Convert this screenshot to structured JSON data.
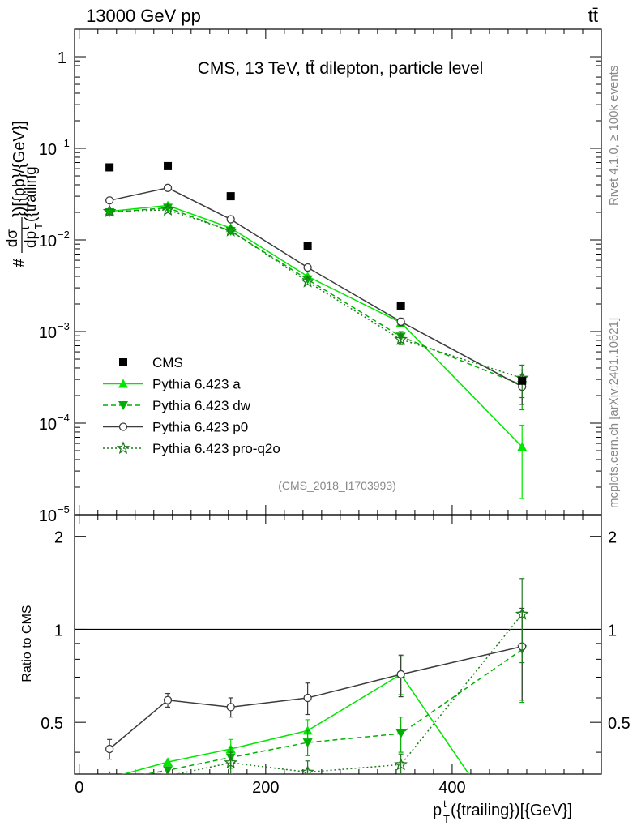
{
  "header": {
    "left": "13000 GeV pp",
    "right": "tt̄"
  },
  "side": {
    "rivet": "Rivet 4.1.0, ≥ 100k events",
    "mcplots": "mcplots.cern.ch [arXiv:2401.10621]"
  },
  "chart_data": {
    "type": "scatter",
    "title": "CMS, 13 TeV, tt̄ dilepton, particle level",
    "watermark": "(CMS_2018_I1703993)",
    "ylabel_top": "dσ / dp_T^t({trailing})[{pb}/{GeV}]",
    "ylabel_top_parts": {
      "hash": "#",
      "num": "dσ",
      "den": "dp",
      "den_sup": "t",
      "den_sub": "T",
      "den_rest": "({trailing",
      "tail": "})[{pb}/{GeV}]"
    },
    "ylabel_ratio": "Ratio to CMS",
    "xlabel": "p_T^t({trailing})[{GeV}]",
    "xlabel_parts": {
      "p": "p",
      "sup": "t",
      "sub": "T",
      "rest": "({trailing})[{GeV}]"
    },
    "xlim": [
      -5,
      560
    ],
    "ylim": [
      1e-05,
      2
    ],
    "ratio_ylim": [
      0.34,
      2.35
    ],
    "xticks": [
      "0",
      "200",
      "400"
    ],
    "yticks_main": [
      {
        "v": 1,
        "b": "1",
        "e": ""
      },
      {
        "v": 0.1,
        "b": "10",
        "e": "−1"
      },
      {
        "v": 0.01,
        "b": "10",
        "e": "−2"
      },
      {
        "v": 0.001,
        "b": "10",
        "e": "−3"
      },
      {
        "v": 0.0001,
        "b": "10",
        "e": "−4"
      },
      {
        "v": 1e-05,
        "b": "10",
        "e": "−5"
      }
    ],
    "yticks_ratio": [
      "0.5",
      "1",
      "2"
    ],
    "x": [
      32.5,
      95,
      162.5,
      245,
      345,
      475
    ],
    "series": [
      {
        "name": "CMS",
        "marker": "square",
        "color": "#000000",
        "dash": "",
        "line": false,
        "values": [
          0.062,
          0.064,
          0.03,
          0.0085,
          0.0019,
          0.00029
        ],
        "err": [
          0,
          0,
          0,
          0,
          0,
          0
        ],
        "ratio": [],
        "ratio_err": []
      },
      {
        "name": "Pythia 6.423 a",
        "marker": "triangle-up",
        "color": "#00e600",
        "dash": "",
        "line": true,
        "values": [
          0.0205,
          0.0238,
          0.0135,
          0.004,
          0.00125,
          5.5e-05
        ],
        "err": [
          0,
          0,
          0,
          0,
          0.0001,
          4e-05
        ],
        "ratio": [
          0.33,
          0.372,
          0.41,
          0.47,
          0.715,
          0.19
        ],
        "ratio_err": [
          0,
          0,
          0.03,
          0.04,
          0.1,
          0
        ]
      },
      {
        "name": "Pythia 6.423 dw",
        "marker": "triangle-down",
        "color": "#00b000",
        "dash": "6,4",
        "line": true,
        "values": [
          0.02,
          0.0224,
          0.0125,
          0.0037,
          0.00088,
          0.00026
        ],
        "err": [
          0,
          0,
          0,
          0,
          0.00012,
          0.00012
        ],
        "ratio": [
          0.323,
          0.35,
          0.385,
          0.43,
          0.46,
          0.86
        ],
        "ratio_err": [
          0,
          0,
          0.03,
          0.04,
          0.06,
          0.28
        ]
      },
      {
        "name": "Pythia 6.423 p0",
        "marker": "circle",
        "color": "#3c3c3c",
        "dash": "",
        "line": true,
        "values": [
          0.027,
          0.037,
          0.0168,
          0.005,
          0.00128,
          0.00025
        ],
        "err": [
          0,
          0,
          0,
          0,
          0.00012,
          9e-05
        ],
        "ratio": [
          0.41,
          0.59,
          0.56,
          0.6,
          0.715,
          0.88
        ],
        "ratio_err": [
          0.03,
          0.03,
          0.04,
          0.07,
          0.11,
          0.29
        ]
      },
      {
        "name": "Pythia 6.423 pro-q2o",
        "marker": "star",
        "color": "#1e7a1e",
        "dash": "2,3",
        "line": true,
        "values": [
          0.0205,
          0.0213,
          0.0126,
          0.0035,
          0.00082,
          0.00031
        ],
        "err": [
          0,
          0,
          0,
          0,
          0.0001,
          0.00012
        ],
        "ratio": [
          0.33,
          0.335,
          0.37,
          0.345,
          0.365,
          1.12
        ],
        "ratio_err": [
          0,
          0,
          0.03,
          0.03,
          0.03,
          0.34
        ]
      }
    ]
  }
}
